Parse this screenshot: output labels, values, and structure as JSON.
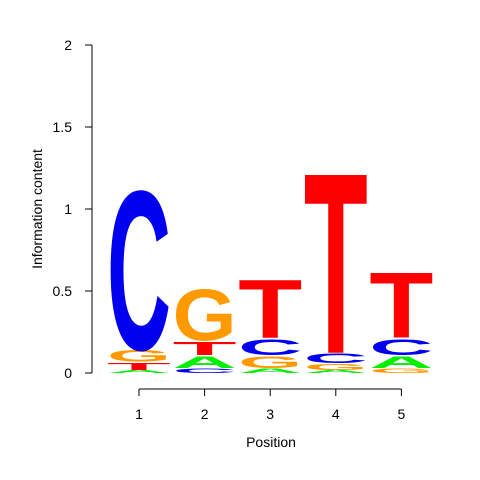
{
  "chart_data": {
    "type": "sequence-logo",
    "xlabel": "Position",
    "ylabel": "Information content",
    "ylim": [
      0,
      2
    ],
    "yticks": [
      0,
      0.5,
      1,
      1.5,
      2
    ],
    "ytick_labels": [
      "0",
      "0.5",
      "1",
      "1.5",
      "2"
    ],
    "xticks": [
      "1",
      "2",
      "3",
      "4",
      "5"
    ],
    "colors": {
      "A": "#00ee00",
      "C": "#0000ee",
      "G": "#ff9900",
      "T": "#ff0000"
    },
    "positions": [
      {
        "position": "1",
        "stack": [
          {
            "letter": "A",
            "height": 0.02
          },
          {
            "letter": "T",
            "height": 0.05
          },
          {
            "letter": "G",
            "height": 0.08
          },
          {
            "letter": "C",
            "height": 1.12
          }
        ]
      },
      {
        "position": "2",
        "stack": [
          {
            "letter": "C",
            "height": 0.03
          },
          {
            "letter": "A",
            "height": 0.08
          },
          {
            "letter": "T",
            "height": 0.09
          },
          {
            "letter": "G",
            "height": 0.36
          }
        ]
      },
      {
        "position": "3",
        "stack": [
          {
            "letter": "A",
            "height": 0.03
          },
          {
            "letter": "G",
            "height": 0.08
          },
          {
            "letter": "C",
            "height": 0.11
          },
          {
            "letter": "T",
            "height": 0.41
          }
        ]
      },
      {
        "position": "4",
        "stack": [
          {
            "letter": "A",
            "height": 0.02
          },
          {
            "letter": "G",
            "height": 0.04
          },
          {
            "letter": "C",
            "height": 0.07
          },
          {
            "letter": "T",
            "height": 1.27
          }
        ]
      },
      {
        "position": "5",
        "stack": [
          {
            "letter": "G",
            "height": 0.03
          },
          {
            "letter": "A",
            "height": 0.08
          },
          {
            "letter": "C",
            "height": 0.11
          },
          {
            "letter": "T",
            "height": 0.46
          }
        ]
      }
    ]
  }
}
